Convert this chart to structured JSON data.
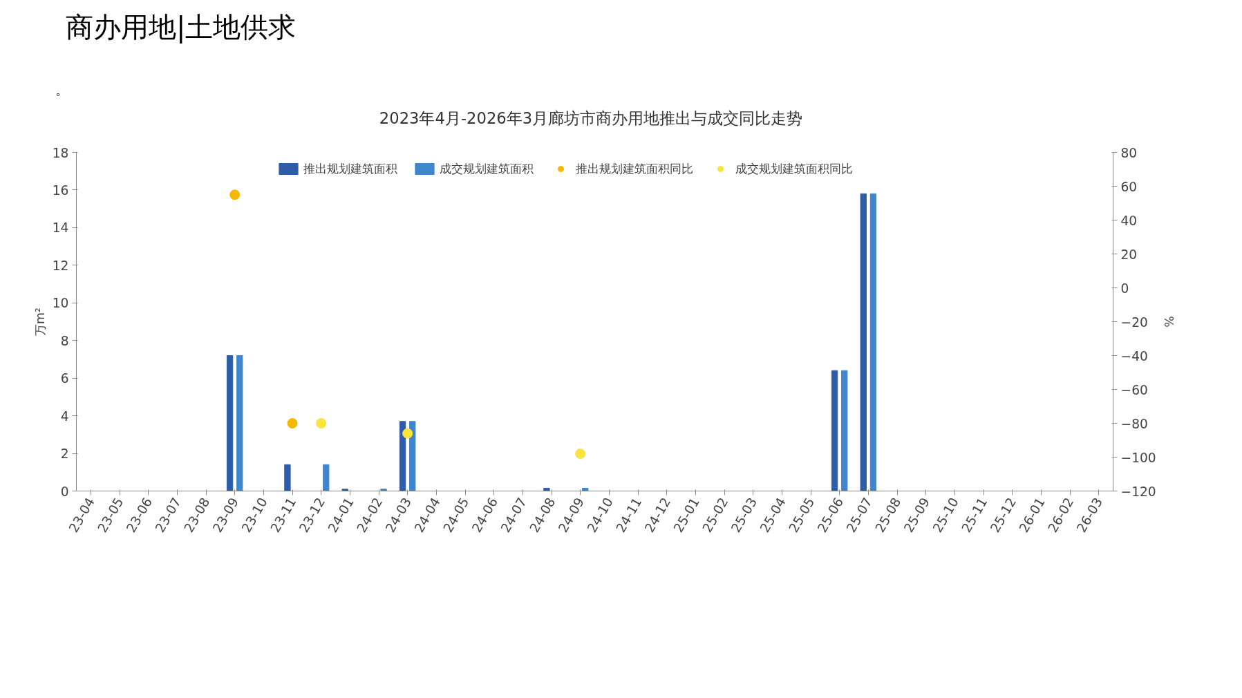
{
  "chart_data": {
    "type": "bar",
    "title": "2023年4月-2026年3月廊坊市商办用地推出与成交同比走势",
    "annotations": [
      "商办用地|土地供求",
      "。"
    ],
    "ylabel": "万m²",
    "y2label": "%",
    "categories": [
      "23-04",
      "23-05",
      "23-06",
      "23-07",
      "23-08",
      "23-09",
      "23-10",
      "23-11",
      "23-12",
      "24-01",
      "24-02",
      "24-03",
      "24-04",
      "24-05",
      "24-06",
      "24-07",
      "24-08",
      "24-09",
      "24-10",
      "24-11",
      "24-12",
      "25-01",
      "25-02",
      "25-03",
      "25-04",
      "25-05",
      "25-06",
      "25-07",
      "25-08",
      "25-09",
      "25-10",
      "25-11",
      "25-12",
      "26-01",
      "26-02",
      "26-03"
    ],
    "series": [
      {
        "name": "推出规划建筑面积",
        "color": "#2e5ca8",
        "values": [
          0,
          0,
          0,
          0,
          0,
          7.2,
          0,
          1.4,
          0,
          0.1,
          0,
          3.7,
          0,
          0,
          0,
          0,
          0.15,
          0,
          0,
          0,
          0,
          0,
          0,
          0,
          0,
          0,
          6.4,
          15.8,
          0,
          0,
          0,
          0,
          0,
          0,
          0,
          0
        ]
      },
      {
        "name": "成交规划建筑面积",
        "color": "#3f86cc",
        "values": [
          0,
          0,
          0,
          0,
          0,
          7.2,
          0,
          0,
          1.4,
          0,
          0.1,
          3.7,
          0,
          0,
          0,
          0,
          0,
          0.15,
          0,
          0,
          0,
          0,
          0,
          0,
          0,
          0,
          6.4,
          15.8,
          0,
          0,
          0,
          0,
          0,
          0,
          0,
          0
        ]
      },
      {
        "name": "推出规划建筑面积同比",
        "type": "scatter",
        "axis": "y2",
        "color": "#f5b800",
        "values": [
          null,
          null,
          null,
          null,
          null,
          55,
          null,
          -80,
          null,
          null,
          null,
          null,
          null,
          null,
          null,
          null,
          null,
          null,
          null,
          null,
          null,
          null,
          null,
          null,
          null,
          null,
          null,
          null,
          null,
          null,
          null,
          null,
          null,
          null,
          null,
          null
        ]
      },
      {
        "name": "成交规划建筑面积同比",
        "type": "scatter",
        "axis": "y2",
        "color": "#fbe43c",
        "values": [
          null,
          null,
          null,
          null,
          null,
          null,
          null,
          null,
          -80,
          null,
          null,
          -86,
          null,
          null,
          null,
          null,
          null,
          -98,
          null,
          null,
          null,
          null,
          null,
          null,
          null,
          null,
          null,
          null,
          null,
          null,
          null,
          null,
          null,
          null,
          null,
          null
        ]
      }
    ],
    "ylim": [
      0,
      18
    ],
    "yticks": [
      0,
      2,
      4,
      6,
      8,
      10,
      12,
      14,
      16,
      18
    ],
    "y2lim": [
      -120,
      80
    ],
    "y2ticks": [
      -120,
      -100,
      -80,
      -60,
      -40,
      -20,
      0,
      20,
      40,
      60,
      80
    ],
    "marker": "circle",
    "legend": "top",
    "grid": false
  }
}
